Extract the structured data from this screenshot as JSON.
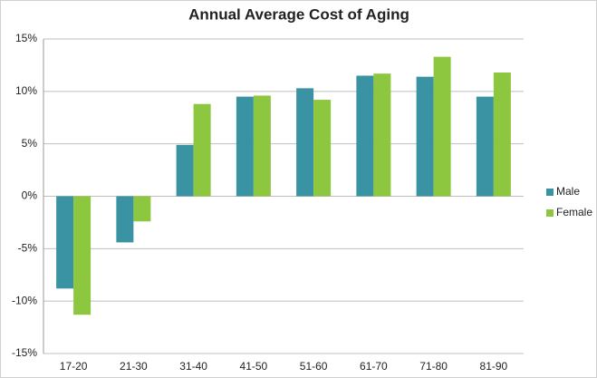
{
  "chart_data": {
    "type": "bar",
    "title": "Annual Average Cost of Aging",
    "categories": [
      "17-20",
      "21-30",
      "31-40",
      "41-50",
      "51-60",
      "61-70",
      "71-80",
      "81-90"
    ],
    "series": [
      {
        "name": "Male",
        "color": "#3a93a3",
        "values": [
          -8.8,
          -4.4,
          4.9,
          9.5,
          10.3,
          11.5,
          11.4,
          9.5
        ]
      },
      {
        "name": "Female",
        "color": "#8dc63f",
        "values": [
          -11.3,
          -2.4,
          8.8,
          9.6,
          9.2,
          11.7,
          13.3,
          11.8
        ]
      }
    ],
    "ylim": [
      -15,
      15
    ],
    "yticks": [
      {
        "value": -15,
        "label": "-15%"
      },
      {
        "value": -10,
        "label": "-10%"
      },
      {
        "value": -5,
        "label": "-5%"
      },
      {
        "value": 0,
        "label": "0%"
      },
      {
        "value": 5,
        "label": "5%"
      },
      {
        "value": 10,
        "label": "10%"
      },
      {
        "value": 15,
        "label": "15%"
      }
    ],
    "grid": true,
    "legend": "right"
  }
}
